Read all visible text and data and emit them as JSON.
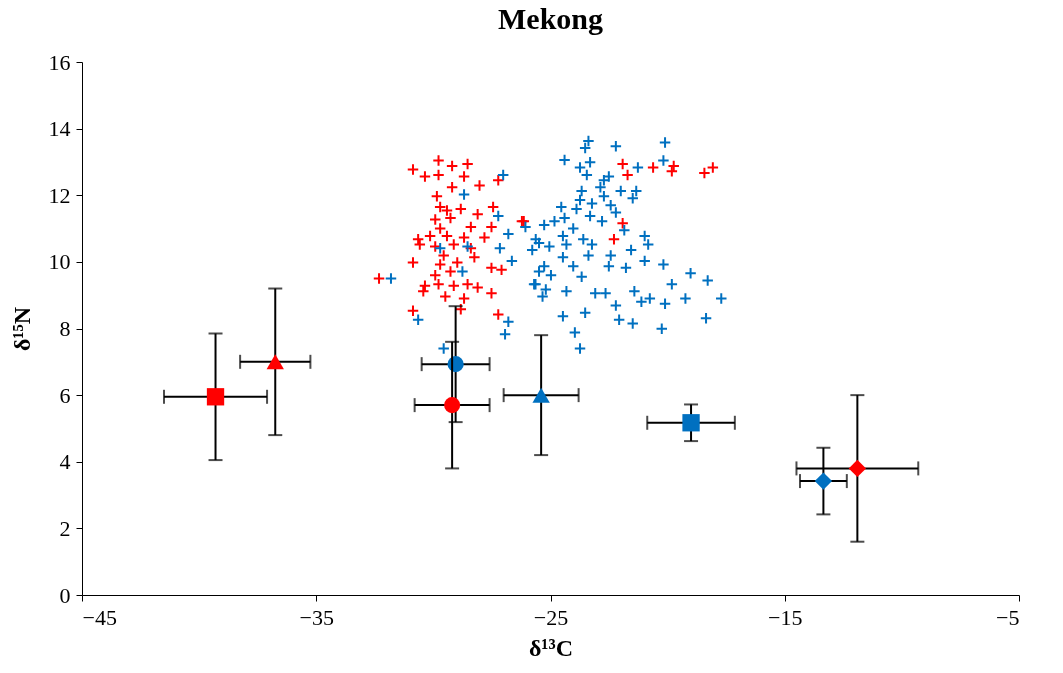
{
  "chart_data": {
    "type": "scatter",
    "title": "Mekong",
    "xlabel": "δ¹³C",
    "ylabel": "δ¹⁵N",
    "xlim": [
      -45,
      -5
    ],
    "xticks": [
      -45,
      -35,
      -25,
      -15,
      -5
    ],
    "ylim": [
      0,
      16
    ],
    "yticks": [
      0,
      2,
      4,
      6,
      8,
      10,
      12,
      14,
      16
    ],
    "grid": false,
    "series": [
      {
        "color": "#ff0000",
        "marker": "cross",
        "x": [
          -30.87,
          -30.36,
          -29.78,
          -29.2,
          -28.54,
          -29.78,
          -28.69,
          -28.03,
          -29.2,
          -29.85,
          -29.71,
          -28.83,
          -28.11,
          -27.45,
          -29.92,
          -29.27,
          -28.4,
          -27.52,
          -26.22,
          -30.65,
          -30.14,
          -29.42,
          -28.69,
          -27.82,
          -30.58,
          -29.92,
          -29.13,
          -28.4,
          -30.87,
          -29.56,
          -28.98,
          -28.25,
          -27.52,
          -27.09,
          -32.32,
          -29.92,
          -29.27,
          -30.36,
          -29.78,
          -29.13,
          -28.54,
          -28.11,
          -27.52,
          -30.43,
          -29.49,
          -28.69,
          -30.87,
          -28.83,
          -27.23,
          -29.71,
          -29.42,
          -29.71,
          -27.23,
          -21.92,
          -21.71,
          -20.62,
          -19.74,
          -19.82,
          -18.43,
          -18.07,
          -26.14,
          -21.92,
          -22.29
        ],
        "values": [
          12.77,
          12.56,
          13.04,
          12.88,
          12.94,
          12.61,
          12.56,
          12.29,
          12.24,
          11.97,
          11.65,
          11.59,
          11.43,
          11.65,
          11.27,
          11.32,
          11.05,
          11.05,
          11.22,
          10.68,
          10.78,
          10.78,
          10.73,
          10.73,
          10.52,
          10.46,
          10.52,
          10.41,
          9.98,
          10.19,
          9.98,
          10.14,
          9.82,
          9.76,
          9.5,
          9.6,
          9.71,
          9.28,
          9.33,
          9.28,
          9.33,
          9.23,
          9.06,
          9.12,
          8.96,
          8.9,
          8.53,
          8.58,
          8.42,
          9.92,
          11.54,
          11.0,
          12.45,
          12.94,
          12.61,
          12.83,
          12.88,
          12.72,
          12.67,
          12.83,
          11.22,
          11.16,
          10.68
        ]
      },
      {
        "color": "#0070c0",
        "marker": "cross",
        "x": [
          -27.02,
          -28.69,
          -27.23,
          -26.8,
          -27.16,
          -26.65,
          -26.07,
          -25.49,
          -31.81,
          -29.71,
          -28.54,
          -28.76,
          -30.65,
          -26.8,
          -26.94,
          -29.56,
          -25.64,
          -25.49,
          -23.38,
          -23.52,
          -22.21,
          -20.11,
          -24.4,
          -23.74,
          -23.31,
          -21.27,
          -20.18,
          -23.45,
          -22.72,
          -22.51,
          -22.87,
          -22.0,
          -21.34,
          -23.67,
          -22.72,
          -21.49,
          -23.74,
          -23.23,
          -22.43,
          -24.54,
          -23.89,
          -22.21,
          -23.31,
          -24.4,
          -25.27,
          -24.83,
          -22.8,
          -24.03,
          -24.47,
          -23.6,
          -25.63,
          -21.85,
          -20.98,
          -20.83,
          -24.32,
          -23.23,
          -25.05,
          -25.78,
          -21.56,
          -22.43,
          -23.38,
          -24.47,
          -25.27,
          -24.03,
          -22.51,
          -21.78,
          -20.98,
          -20.18,
          -19.02,
          -18.29,
          -24.98,
          -23.67,
          -25.7,
          -25.2,
          -24.32,
          -23.09,
          -22.65,
          -21.42,
          -19.82,
          -25.34,
          -22.21,
          -21.12,
          -20.76,
          -20.11,
          -19.24,
          -17.71,
          -24.47,
          -23.52,
          -22.07,
          -21.49,
          -20.25,
          -18.36,
          -23.96,
          -23.74
        ],
        "values": [
          12.61,
          12.02,
          11.38,
          10.84,
          10.41,
          10.03,
          11.05,
          10.57,
          9.5,
          10.41,
          10.46,
          9.71,
          8.26,
          8.2,
          7.83,
          7.4,
          9.33,
          9.71,
          13.63,
          13.42,
          13.47,
          13.58,
          13.06,
          12.83,
          12.99,
          12.83,
          13.04,
          12.61,
          12.45,
          12.56,
          12.24,
          12.13,
          12.13,
          12.13,
          11.97,
          11.91,
          11.86,
          11.75,
          11.7,
          11.65,
          11.59,
          11.48,
          11.38,
          11.32,
          11.11,
          11.22,
          11.22,
          11.0,
          10.78,
          10.68,
          10.68,
          10.95,
          10.78,
          10.52,
          10.52,
          10.52,
          10.46,
          10.36,
          10.36,
          10.19,
          10.19,
          10.14,
          9.87,
          9.87,
          9.87,
          9.82,
          10.03,
          9.92,
          9.66,
          9.44,
          9.6,
          9.55,
          9.33,
          9.17,
          9.12,
          9.06,
          9.06,
          9.12,
          9.33,
          8.96,
          8.69,
          8.8,
          8.9,
          8.74,
          8.9,
          8.9,
          8.37,
          8.47,
          8.26,
          8.15,
          7.99,
          8.31,
          7.88,
          7.4
        ]
      },
      {
        "color": "#ff0000",
        "marker": "square",
        "x": [
          -39.3
        ],
        "values": [
          5.95
        ],
        "errors": [
          1.9
        ],
        "xerrors": [
          2.2
        ]
      },
      {
        "color": "#ff0000",
        "marker": "triangle",
        "x": [
          -36.75
        ],
        "values": [
          7.0
        ],
        "errors": [
          2.2
        ],
        "xerrors": [
          1.5
        ]
      },
      {
        "color": "#0070c0",
        "marker": "circle",
        "x": [
          -29.05
        ],
        "values": [
          6.93
        ],
        "errors": [
          1.74
        ],
        "xerrors": [
          1.45
        ]
      },
      {
        "color": "#ff0000",
        "marker": "circle",
        "x": [
          -29.2
        ],
        "values": [
          5.7
        ],
        "errors": [
          1.9
        ],
        "xerrors": [
          1.6
        ]
      },
      {
        "color": "#0070c0",
        "marker": "triangle",
        "x": [
          -25.4
        ],
        "values": [
          6.0
        ],
        "errors": [
          1.8
        ],
        "xerrors": [
          1.6
        ]
      },
      {
        "color": "#0070c0",
        "marker": "square",
        "x": [
          -19.0
        ],
        "values": [
          5.17
        ],
        "errors": [
          0.55
        ],
        "xerrors": [
          1.87
        ]
      },
      {
        "color": "#0070c0",
        "marker": "diamond",
        "x": [
          -13.35
        ],
        "values": [
          3.42
        ],
        "errors": [
          1.0
        ],
        "xerrors": [
          1.0
        ]
      },
      {
        "color": "#ff0000",
        "marker": "diamond",
        "x": [
          -11.9
        ],
        "values": [
          3.8
        ],
        "errors": [
          2.2
        ],
        "xerrors": [
          2.6
        ]
      }
    ]
  }
}
